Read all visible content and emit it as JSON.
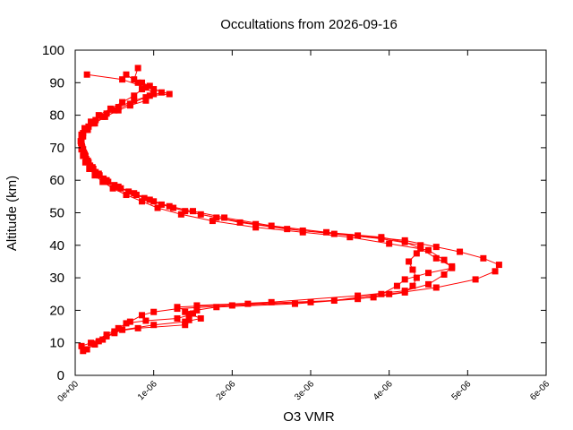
{
  "chart_data": {
    "type": "line",
    "title": "Occultations from 2026-09-16",
    "xlabel": "O3 VMR",
    "ylabel": "Altitude (km)",
    "xlim": [
      0,
      6e-06
    ],
    "ylim": [
      0,
      100
    ],
    "x_ticks": [
      "0e+00",
      "1e-06",
      "2e-06",
      "3e-06",
      "4e-06",
      "5e-06",
      "6e-06"
    ],
    "y_ticks": [
      "0",
      "10",
      "20",
      "30",
      "40",
      "50",
      "60",
      "70",
      "80",
      "90",
      "100"
    ],
    "grid": false,
    "legend": "none",
    "color": "#ff0000",
    "marker": "square",
    "series": [
      {
        "points": [
          [
            8e-08,
            9.0
          ],
          [
            2e-07,
            10.0
          ],
          [
            4e-07,
            12.5
          ],
          [
            5.5e-07,
            14.5
          ],
          [
            6.5e-07,
            16.0
          ],
          [
            9e-07,
            16.8
          ],
          [
            1.3e-06,
            17.5
          ],
          [
            1.45e-06,
            18.5
          ],
          [
            1.55e-06,
            20.0
          ],
          [
            1.55e-06,
            21.5
          ],
          [
            2.5e-06,
            22.5
          ],
          [
            3.6e-06,
            24.5
          ],
          [
            4.2e-06,
            26.0
          ],
          [
            4.5e-06,
            28.0
          ],
          [
            4.7e-06,
            31.0
          ],
          [
            4.8e-06,
            33.5
          ],
          [
            4.6e-06,
            36.0
          ],
          [
            4.4e-06,
            39.0
          ],
          [
            4.2e-06,
            41.0
          ],
          [
            3.9e-06,
            42.5
          ],
          [
            3.2e-06,
            44.0
          ],
          [
            2.5e-06,
            46.0
          ],
          [
            1.9e-06,
            48.5
          ],
          [
            1.5e-06,
            50.5
          ],
          [
            1.2e-06,
            52.0
          ],
          [
            9.5e-07,
            54.0
          ],
          [
            7.5e-07,
            56.0
          ],
          [
            5.5e-07,
            58.0
          ],
          [
            4e-07,
            60.0
          ],
          [
            3e-07,
            62.0
          ],
          [
            2.2e-07,
            64.0
          ],
          [
            1.6e-07,
            66.0
          ],
          [
            1.2e-07,
            68.0
          ],
          [
            9e-08,
            70.0
          ],
          [
            7e-08,
            72.0
          ],
          [
            8e-08,
            74.0
          ],
          [
            1.2e-07,
            76.0
          ],
          [
            2e-07,
            78.0
          ],
          [
            3e-07,
            80.0
          ],
          [
            4.5e-07,
            82.0
          ],
          [
            6e-07,
            84.0
          ],
          [
            7.5e-07,
            86.0
          ],
          [
            8.5e-07,
            88.0
          ],
          [
            8e-07,
            90.0
          ],
          [
            6.5e-07,
            92.5
          ]
        ]
      },
      {
        "points": [
          [
            1.5e-07,
            8.0
          ],
          [
            3e-07,
            10.5
          ],
          [
            5e-07,
            13.0
          ],
          [
            7e-07,
            16.5
          ],
          [
            8.5e-07,
            18.5
          ],
          [
            1e-06,
            19.5
          ],
          [
            1.3e-06,
            20.5
          ],
          [
            2e-06,
            21.5
          ],
          [
            3e-06,
            22.5
          ],
          [
            3.8e-06,
            24.0
          ],
          [
            4.2e-06,
            25.5
          ],
          [
            4.3e-06,
            27.5
          ],
          [
            4.35e-06,
            30.0
          ],
          [
            4.3e-06,
            32.5
          ],
          [
            4.25e-06,
            35.0
          ],
          [
            4.35e-06,
            37.5
          ],
          [
            4.4e-06,
            40.0
          ],
          [
            3.9e-06,
            42.0
          ],
          [
            3.3e-06,
            43.5
          ],
          [
            2.7e-06,
            45.0
          ],
          [
            2.1e-06,
            47.0
          ],
          [
            1.6e-06,
            49.5
          ],
          [
            1.25e-06,
            51.5
          ],
          [
            1e-06,
            53.5
          ],
          [
            7.8e-07,
            55.5
          ],
          [
            5.8e-07,
            57.5
          ],
          [
            4.2e-07,
            59.5
          ],
          [
            3.1e-07,
            61.5
          ],
          [
            2.3e-07,
            63.5
          ],
          [
            1.7e-07,
            65.5
          ],
          [
            1.3e-07,
            67.5
          ],
          [
            1e-07,
            69.5
          ],
          [
            8e-08,
            71.5
          ],
          [
            9e-08,
            73.5
          ],
          [
            1.4e-07,
            75.5
          ],
          [
            2.3e-07,
            77.5
          ],
          [
            3.5e-07,
            79.5
          ],
          [
            5e-07,
            81.5
          ],
          [
            7e-07,
            83.5
          ],
          [
            9e-07,
            85.5
          ],
          [
            1.1e-06,
            87.0
          ],
          [
            9.5e-07,
            89.0
          ],
          [
            7.5e-07,
            91.0
          ],
          [
            8e-07,
            94.5
          ]
        ]
      },
      {
        "points": [
          [
            2.5e-07,
            9.5
          ],
          [
            4e-07,
            12.0
          ],
          [
            6e-07,
            14.0
          ],
          [
            1e-06,
            15.5
          ],
          [
            1.4e-06,
            16.5
          ],
          [
            1.6e-06,
            17.5
          ],
          [
            1.4e-06,
            19.5
          ],
          [
            1.8e-06,
            21.0
          ],
          [
            2.8e-06,
            22.0
          ],
          [
            3.6e-06,
            23.5
          ],
          [
            4e-06,
            25.0
          ],
          [
            4.6e-06,
            27.0
          ],
          [
            5.1e-06,
            29.5
          ],
          [
            5.35e-06,
            32.0
          ],
          [
            5.4e-06,
            34.0
          ],
          [
            5.2e-06,
            36.0
          ],
          [
            4.9e-06,
            38.0
          ],
          [
            4.6e-06,
            39.5
          ],
          [
            4.2e-06,
            41.5
          ],
          [
            3.6e-06,
            43.0
          ],
          [
            2.9e-06,
            44.5
          ],
          [
            2.3e-06,
            46.5
          ],
          [
            1.8e-06,
            48.5
          ],
          [
            1.4e-06,
            50.5
          ],
          [
            1.1e-06,
            52.5
          ],
          [
            8.8e-07,
            54.5
          ],
          [
            6.8e-07,
            56.5
          ],
          [
            5e-07,
            58.5
          ],
          [
            3.6e-07,
            60.5
          ],
          [
            2.6e-07,
            62.5
          ],
          [
            1.9e-07,
            64.5
          ],
          [
            1.4e-07,
            66.5
          ],
          [
            1.1e-07,
            68.5
          ],
          [
            8.5e-08,
            70.5
          ],
          [
            8e-08,
            72.5
          ],
          [
            1e-07,
            74.5
          ],
          [
            1.7e-07,
            76.5
          ],
          [
            2.6e-07,
            78.5
          ],
          [
            4e-07,
            80.5
          ],
          [
            5.5e-07,
            82.5
          ],
          [
            7.5e-07,
            84.5
          ],
          [
            9.5e-07,
            86.0
          ],
          [
            1.2e-06,
            86.5
          ],
          [
            1e-06,
            88.0
          ],
          [
            8.5e-07,
            90.0
          ]
        ]
      },
      {
        "points": [
          [
            1e-07,
            7.5
          ],
          [
            3.5e-07,
            11.0
          ],
          [
            5e-07,
            13.5
          ],
          [
            8e-07,
            14.5
          ],
          [
            1.4e-06,
            15.5
          ],
          [
            1.45e-06,
            17.0
          ],
          [
            1.5e-06,
            19.0
          ],
          [
            1.3e-06,
            21.0
          ],
          [
            2.2e-06,
            22.0
          ],
          [
            3.3e-06,
            23.0
          ],
          [
            3.9e-06,
            25.0
          ],
          [
            4.1e-06,
            27.5
          ],
          [
            4.2e-06,
            29.5
          ],
          [
            4.5e-06,
            31.5
          ],
          [
            4.8e-06,
            33.0
          ],
          [
            4.7e-06,
            35.5
          ],
          [
            4.5e-06,
            38.5
          ],
          [
            4e-06,
            40.5
          ],
          [
            3.5e-06,
            42.5
          ],
          [
            2.9e-06,
            44.0
          ],
          [
            2.3e-06,
            45.5
          ],
          [
            1.75e-06,
            47.5
          ],
          [
            1.35e-06,
            49.5
          ],
          [
            1.05e-06,
            51.5
          ],
          [
            8.5e-07,
            53.5
          ],
          [
            6.5e-07,
            55.5
          ],
          [
            4.8e-07,
            57.5
          ],
          [
            3.5e-07,
            59.5
          ],
          [
            2.5e-07,
            61.5
          ],
          [
            1.8e-07,
            63.5
          ],
          [
            1.3e-07,
            65.5
          ],
          [
            1e-07,
            67.5
          ],
          [
            8e-08,
            69.5
          ],
          [
            7.5e-08,
            71.5
          ],
          [
            1e-07,
            73.5
          ],
          [
            1.6e-07,
            75.5
          ],
          [
            2.5e-07,
            77.5
          ],
          [
            3.8e-07,
            79.5
          ],
          [
            5.5e-07,
            81.5
          ],
          [
            7e-07,
            83.0
          ],
          [
            9e-07,
            84.5
          ],
          [
            1e-06,
            86.5
          ],
          [
            9e-07,
            88.5
          ],
          [
            6e-07,
            91.0
          ],
          [
            1.5e-07,
            92.5
          ]
        ]
      }
    ]
  }
}
